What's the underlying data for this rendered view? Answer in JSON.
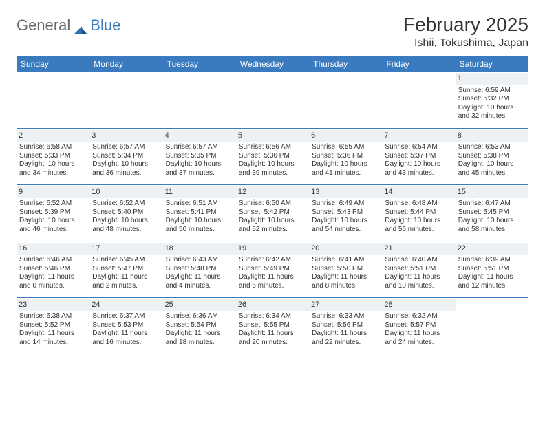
{
  "brand": {
    "part1": "General",
    "part2": "Blue"
  },
  "header": {
    "month_title": "February 2025",
    "location": "Ishii, Tokushima, Japan"
  },
  "styling": {
    "header_bg": "#3a7bbf",
    "header_text": "#ffffff",
    "daynum_bg": "#eef1f3",
    "row_divider": "#3a7bbf",
    "page_bg": "#ffffff",
    "body_text": "#333333",
    "font_family": "Arial",
    "title_fontsize_pt": 21,
    "location_fontsize_pt": 12,
    "weekday_fontsize_pt": 9,
    "cell_fontsize_pt": 7.5
  },
  "weekdays": [
    "Sunday",
    "Monday",
    "Tuesday",
    "Wednesday",
    "Thursday",
    "Friday",
    "Saturday"
  ],
  "weeks": [
    [
      {
        "day": "",
        "sunrise": "",
        "sunset": "",
        "daylight": ""
      },
      {
        "day": "",
        "sunrise": "",
        "sunset": "",
        "daylight": ""
      },
      {
        "day": "",
        "sunrise": "",
        "sunset": "",
        "daylight": ""
      },
      {
        "day": "",
        "sunrise": "",
        "sunset": "",
        "daylight": ""
      },
      {
        "day": "",
        "sunrise": "",
        "sunset": "",
        "daylight": ""
      },
      {
        "day": "",
        "sunrise": "",
        "sunset": "",
        "daylight": ""
      },
      {
        "day": "1",
        "sunrise": "Sunrise: 6:59 AM",
        "sunset": "Sunset: 5:32 PM",
        "daylight": "Daylight: 10 hours and 32 minutes."
      }
    ],
    [
      {
        "day": "2",
        "sunrise": "Sunrise: 6:58 AM",
        "sunset": "Sunset: 5:33 PM",
        "daylight": "Daylight: 10 hours and 34 minutes."
      },
      {
        "day": "3",
        "sunrise": "Sunrise: 6:57 AM",
        "sunset": "Sunset: 5:34 PM",
        "daylight": "Daylight: 10 hours and 36 minutes."
      },
      {
        "day": "4",
        "sunrise": "Sunrise: 6:57 AM",
        "sunset": "Sunset: 5:35 PM",
        "daylight": "Daylight: 10 hours and 37 minutes."
      },
      {
        "day": "5",
        "sunrise": "Sunrise: 6:56 AM",
        "sunset": "Sunset: 5:36 PM",
        "daylight": "Daylight: 10 hours and 39 minutes."
      },
      {
        "day": "6",
        "sunrise": "Sunrise: 6:55 AM",
        "sunset": "Sunset: 5:36 PM",
        "daylight": "Daylight: 10 hours and 41 minutes."
      },
      {
        "day": "7",
        "sunrise": "Sunrise: 6:54 AM",
        "sunset": "Sunset: 5:37 PM",
        "daylight": "Daylight: 10 hours and 43 minutes."
      },
      {
        "day": "8",
        "sunrise": "Sunrise: 6:53 AM",
        "sunset": "Sunset: 5:38 PM",
        "daylight": "Daylight: 10 hours and 45 minutes."
      }
    ],
    [
      {
        "day": "9",
        "sunrise": "Sunrise: 6:52 AM",
        "sunset": "Sunset: 5:39 PM",
        "daylight": "Daylight: 10 hours and 46 minutes."
      },
      {
        "day": "10",
        "sunrise": "Sunrise: 6:52 AM",
        "sunset": "Sunset: 5:40 PM",
        "daylight": "Daylight: 10 hours and 48 minutes."
      },
      {
        "day": "11",
        "sunrise": "Sunrise: 6:51 AM",
        "sunset": "Sunset: 5:41 PM",
        "daylight": "Daylight: 10 hours and 50 minutes."
      },
      {
        "day": "12",
        "sunrise": "Sunrise: 6:50 AM",
        "sunset": "Sunset: 5:42 PM",
        "daylight": "Daylight: 10 hours and 52 minutes."
      },
      {
        "day": "13",
        "sunrise": "Sunrise: 6:49 AM",
        "sunset": "Sunset: 5:43 PM",
        "daylight": "Daylight: 10 hours and 54 minutes."
      },
      {
        "day": "14",
        "sunrise": "Sunrise: 6:48 AM",
        "sunset": "Sunset: 5:44 PM",
        "daylight": "Daylight: 10 hours and 56 minutes."
      },
      {
        "day": "15",
        "sunrise": "Sunrise: 6:47 AM",
        "sunset": "Sunset: 5:45 PM",
        "daylight": "Daylight: 10 hours and 58 minutes."
      }
    ],
    [
      {
        "day": "16",
        "sunrise": "Sunrise: 6:46 AM",
        "sunset": "Sunset: 5:46 PM",
        "daylight": "Daylight: 11 hours and 0 minutes."
      },
      {
        "day": "17",
        "sunrise": "Sunrise: 6:45 AM",
        "sunset": "Sunset: 5:47 PM",
        "daylight": "Daylight: 11 hours and 2 minutes."
      },
      {
        "day": "18",
        "sunrise": "Sunrise: 6:43 AM",
        "sunset": "Sunset: 5:48 PM",
        "daylight": "Daylight: 11 hours and 4 minutes."
      },
      {
        "day": "19",
        "sunrise": "Sunrise: 6:42 AM",
        "sunset": "Sunset: 5:49 PM",
        "daylight": "Daylight: 11 hours and 6 minutes."
      },
      {
        "day": "20",
        "sunrise": "Sunrise: 6:41 AM",
        "sunset": "Sunset: 5:50 PM",
        "daylight": "Daylight: 11 hours and 8 minutes."
      },
      {
        "day": "21",
        "sunrise": "Sunrise: 6:40 AM",
        "sunset": "Sunset: 5:51 PM",
        "daylight": "Daylight: 11 hours and 10 minutes."
      },
      {
        "day": "22",
        "sunrise": "Sunrise: 6:39 AM",
        "sunset": "Sunset: 5:51 PM",
        "daylight": "Daylight: 11 hours and 12 minutes."
      }
    ],
    [
      {
        "day": "23",
        "sunrise": "Sunrise: 6:38 AM",
        "sunset": "Sunset: 5:52 PM",
        "daylight": "Daylight: 11 hours and 14 minutes."
      },
      {
        "day": "24",
        "sunrise": "Sunrise: 6:37 AM",
        "sunset": "Sunset: 5:53 PM",
        "daylight": "Daylight: 11 hours and 16 minutes."
      },
      {
        "day": "25",
        "sunrise": "Sunrise: 6:36 AM",
        "sunset": "Sunset: 5:54 PM",
        "daylight": "Daylight: 11 hours and 18 minutes."
      },
      {
        "day": "26",
        "sunrise": "Sunrise: 6:34 AM",
        "sunset": "Sunset: 5:55 PM",
        "daylight": "Daylight: 11 hours and 20 minutes."
      },
      {
        "day": "27",
        "sunrise": "Sunrise: 6:33 AM",
        "sunset": "Sunset: 5:56 PM",
        "daylight": "Daylight: 11 hours and 22 minutes."
      },
      {
        "day": "28",
        "sunrise": "Sunrise: 6:32 AM",
        "sunset": "Sunset: 5:57 PM",
        "daylight": "Daylight: 11 hours and 24 minutes."
      },
      {
        "day": "",
        "sunrise": "",
        "sunset": "",
        "daylight": ""
      }
    ]
  ]
}
